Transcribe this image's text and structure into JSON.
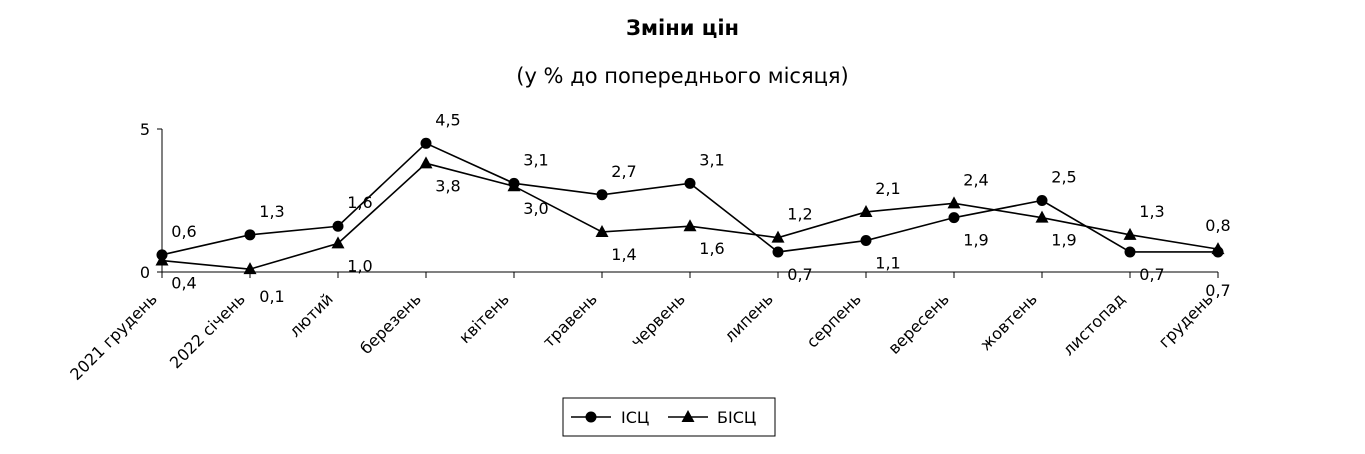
{
  "chart_data": {
    "type": "line",
    "title": "Зміни цін",
    "subtitle": "(у % до попереднього місяця)",
    "categories": [
      "2021 грудень",
      "2022 січень",
      "лютий",
      "березень",
      "квітень",
      "травень",
      "червень",
      "липень",
      "серпень",
      "вересень",
      "жовтень",
      "листопад",
      "грудень"
    ],
    "series": [
      {
        "name": "ІСЦ",
        "marker": "circle",
        "values": [
          0.6,
          1.3,
          1.6,
          4.5,
          3.1,
          2.7,
          3.1,
          0.7,
          1.1,
          1.9,
          2.5,
          0.7,
          0.7
        ],
        "labels": [
          "0,6",
          "1,3",
          "1,6",
          "4,5",
          "3,1",
          "2,7",
          "3,1",
          "0,7",
          "1,1",
          "1,9",
          "2,5",
          "0,7",
          "0,7"
        ]
      },
      {
        "name": "БІСЦ",
        "marker": "triangle",
        "values": [
          0.4,
          0.1,
          1.0,
          3.8,
          3.0,
          1.4,
          1.6,
          1.2,
          2.1,
          2.4,
          1.9,
          1.3,
          0.8
        ],
        "labels": [
          "0,4",
          "0,1",
          "1,0",
          "3,8",
          "3,0",
          "1,4",
          "1,6",
          "1,2",
          "2,1",
          "2,4",
          "1,9",
          "1,3",
          "0,8"
        ]
      }
    ],
    "ylim": [
      0,
      5
    ],
    "yticks": [
      "0",
      "5"
    ],
    "grid": false,
    "legend": "bottom-center",
    "line_color": "#000000"
  }
}
